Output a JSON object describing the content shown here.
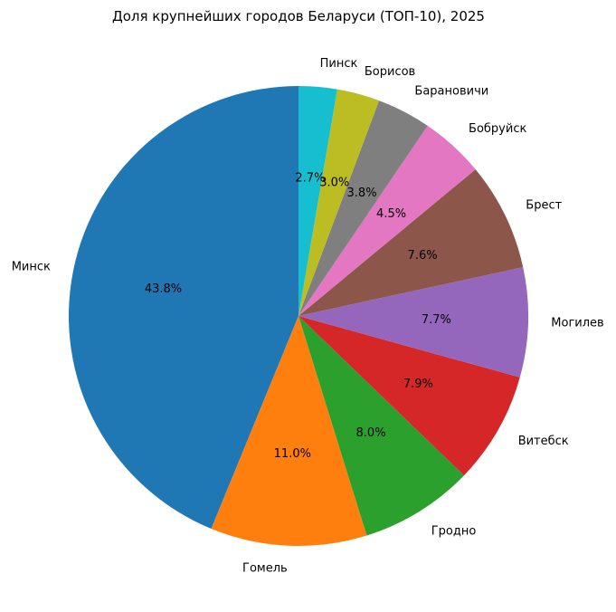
{
  "chart_data": {
    "type": "pie",
    "title": "Доля крупнейших городов Беларуси (ТОП-10), 2025",
    "start_angle_deg": 90,
    "direction": "counterclockwise",
    "slices": [
      {
        "label": "Минск",
        "value": 43.8,
        "pct_label": "43.8%",
        "color": "#1f77b4"
      },
      {
        "label": "Гомель",
        "value": 11.0,
        "pct_label": "11.0%",
        "color": "#ff7f0e"
      },
      {
        "label": "Гродно",
        "value": 8.0,
        "pct_label": "8.0%",
        "color": "#2ca02c"
      },
      {
        "label": "Витебск",
        "value": 7.9,
        "pct_label": "7.9%",
        "color": "#d62728"
      },
      {
        "label": "Могилев",
        "value": 7.7,
        "pct_label": "7.7%",
        "color": "#9467bd"
      },
      {
        "label": "Брест",
        "value": 7.6,
        "pct_label": "7.6%",
        "color": "#8c564b"
      },
      {
        "label": "Бобруйск",
        "value": 4.5,
        "pct_label": "4.5%",
        "color": "#e377c2"
      },
      {
        "label": "Барановичи",
        "value": 3.8,
        "pct_label": "3.8%",
        "color": "#7f7f7f"
      },
      {
        "label": "Борисов",
        "value": 3.0,
        "pct_label": "3.0%",
        "color": "#bcbd22"
      },
      {
        "label": "Пинск",
        "value": 2.7,
        "pct_label": "2.7%",
        "color": "#17becf"
      }
    ]
  }
}
